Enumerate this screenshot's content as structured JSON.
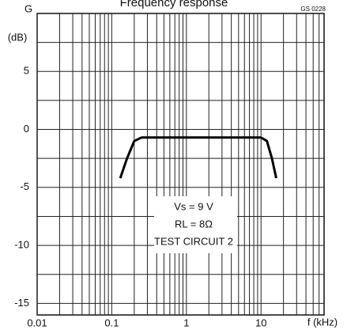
{
  "chart_data": {
    "type": "line",
    "title": "Frequency response",
    "code": "GS 0228",
    "y_label": "G",
    "y_unit": "(dB)",
    "x_label": "f (kHz)",
    "annotations": [
      "Vs = 9 V",
      "RL = 8Ω",
      "TEST CIRCUIT 2"
    ],
    "log_x": true,
    "grid": true,
    "xlim": [
      0.01,
      70
    ],
    "xticks": [
      0.01,
      0.1,
      1,
      10
    ],
    "x_minor_ticks": [
      0.02,
      0.03,
      0.04,
      0.05,
      0.06,
      0.07,
      0.08,
      0.09,
      0.2,
      0.3,
      0.4,
      0.5,
      0.6,
      0.7,
      0.8,
      0.9,
      2,
      3,
      4,
      5,
      6,
      7,
      8,
      9,
      20,
      30,
      40,
      50,
      60
    ],
    "ylim": [
      -16,
      10
    ],
    "yticks": [
      5,
      0,
      -5,
      -10,
      -15
    ],
    "y_minor_ticks": [
      7.5,
      2.5,
      -2.5,
      -7.5,
      -12.5
    ],
    "series": [
      {
        "color": "#000000",
        "x": [
          0.13,
          0.16,
          0.2,
          0.25,
          1,
          10,
          12,
          14,
          16
        ],
        "values": [
          -4.2,
          -2.5,
          -1,
          -0.7,
          -0.7,
          -0.7,
          -1,
          -2.5,
          -4.2
        ]
      }
    ]
  }
}
